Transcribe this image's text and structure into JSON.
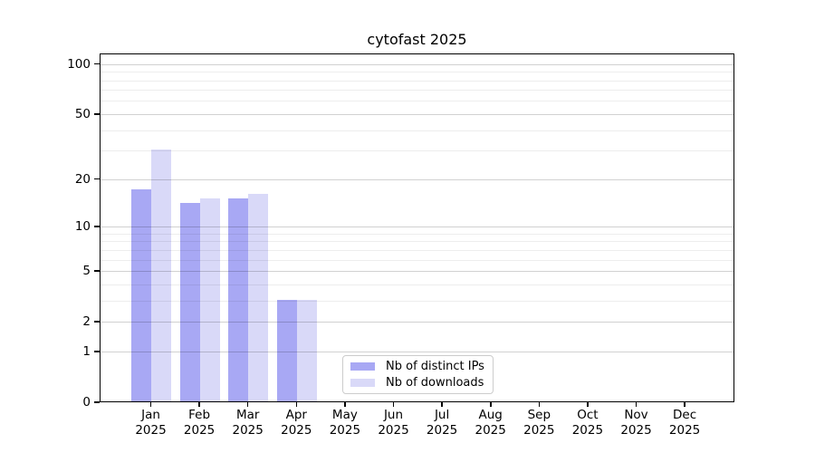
{
  "chart_data": {
    "type": "bar",
    "title": "cytofast 2025",
    "x": {
      "categories": [
        "Jan",
        "Feb",
        "Mar",
        "Apr",
        "May",
        "Jun",
        "Jul",
        "Aug",
        "Sep",
        "Oct",
        "Nov",
        "Dec"
      ],
      "year_label": "2025"
    },
    "series": [
      {
        "name": "Nb of distinct IPs",
        "color": "#a8a8f4",
        "values": [
          17,
          14,
          15,
          3,
          0,
          0,
          0,
          0,
          0,
          0,
          0,
          0
        ]
      },
      {
        "name": "Nb of downloads",
        "color": "#d9d9f8",
        "values": [
          30,
          15,
          16,
          3,
          0,
          0,
          0,
          0,
          0,
          0,
          0,
          0
        ]
      }
    ],
    "yscale": "log1p",
    "ylim": [
      0,
      115
    ],
    "yticks": [
      0,
      1,
      2,
      5,
      10,
      20,
      50,
      100
    ],
    "gridline_values": [
      1,
      2,
      3,
      4,
      5,
      6,
      7,
      8,
      9,
      10,
      20,
      30,
      40,
      50,
      60,
      70,
      80,
      90,
      100
    ],
    "grid_on": true,
    "legend": {
      "position": "lower-center",
      "entries": [
        "Nb of distinct IPs",
        "Nb of downloads"
      ]
    },
    "colors": {
      "axis": "#000000",
      "grid_minor": "rgba(0,0,0,0.07)",
      "grid_major": "rgba(0,0,0,0.18)",
      "legend_border": "#cccccc",
      "text": "#000000"
    }
  }
}
